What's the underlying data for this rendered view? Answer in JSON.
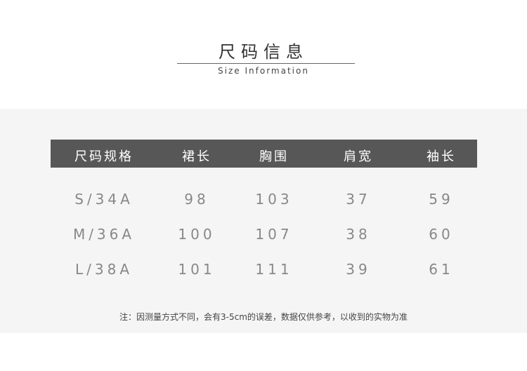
{
  "header": {
    "title": "尺码信息",
    "subtitle": "Size Information"
  },
  "table": {
    "columns": [
      "尺码规格",
      "裙长",
      "胸围",
      "肩宽",
      "袖长"
    ],
    "rows": [
      [
        "S/34A",
        "98",
        "103",
        "37",
        "59"
      ],
      [
        "M/36A",
        "100",
        "107",
        "38",
        "60"
      ],
      [
        "L/38A",
        "101",
        "111",
        "39",
        "61"
      ]
    ]
  },
  "note": "注：因测量方式不同，会有3-5cm的误差，数据仅供参考，以收到的实物为准"
}
